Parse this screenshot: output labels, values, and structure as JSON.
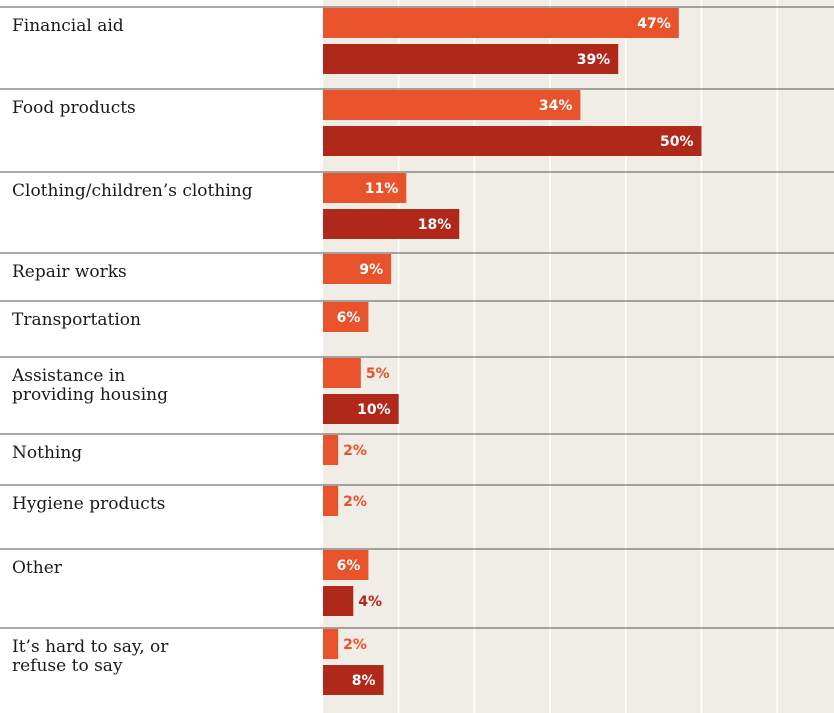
{
  "chart_data": {
    "type": "bar",
    "orientation": "horizontal",
    "grid": true,
    "xlim": [
      0,
      67
    ],
    "colors": {
      "series_a": "#E8532B",
      "series_b": "#B0281A",
      "plot_bg": "#F0EDE7",
      "grid": "#FFFFFF",
      "divider": "#555555"
    },
    "categories": [
      "Financial aid",
      "Food products",
      "Clothing/children’s clothing",
      "Repair works",
      "Transportation",
      "Assistance in\nproviding housing",
      "Nothing",
      "Hygiene products",
      "Other",
      "It’s hard to say, or\nrefuse to say"
    ],
    "series": [
      {
        "values": [
          47,
          34,
          11,
          9,
          6,
          5,
          2,
          2,
          6,
          2
        ],
        "labels": [
          "47%",
          "34%",
          "11%",
          "9%",
          "6%",
          "5%",
          "2%",
          "2%",
          "6%",
          "2%"
        ]
      },
      {
        "values": [
          39,
          50,
          18,
          null,
          null,
          10,
          null,
          null,
          4,
          8
        ],
        "labels": [
          "39%",
          "50%",
          "18%",
          null,
          null,
          "10%",
          null,
          null,
          "4%",
          "8%"
        ]
      }
    ]
  }
}
